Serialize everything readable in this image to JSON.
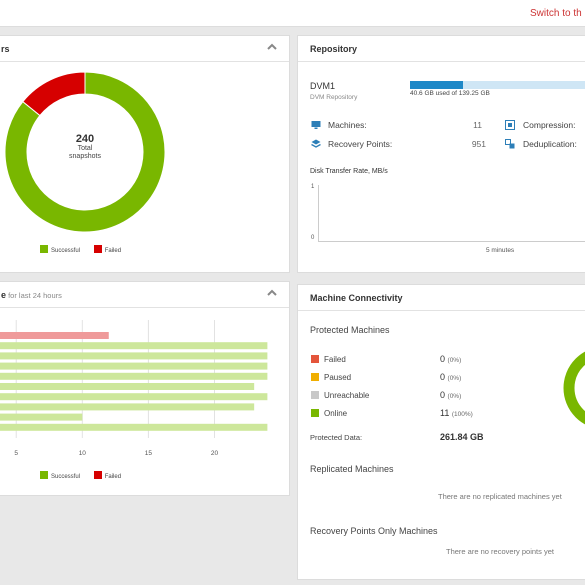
{
  "topbar": {
    "switch_link": "Switch to th"
  },
  "snapshots_panel": {
    "title": "rs",
    "total": "240",
    "total_label_1": "Total",
    "total_label_2": "snapshots",
    "successful": 206,
    "failed": 34,
    "legend_successful": "Successful",
    "legend_failed": "Failed",
    "color_successful": "#79b700",
    "color_failed": "#d60000"
  },
  "repository": {
    "title": "Repository",
    "name": "DVM1",
    "type": "DVM Repository",
    "usage_text": "40.6 GB used of 139.25 GB",
    "used_gb": 40.6,
    "total_gb": 139.25,
    "machines_label": "Machines:",
    "machines_value": "11",
    "recovery_points_label": "Recovery Points:",
    "recovery_points_value": "951",
    "compression_label": "Compression:",
    "deduplication_label": "Deduplication:",
    "transfer_title": "Disk Transfer Rate, MB/s",
    "y_top": "1",
    "y_bottom": "0",
    "x_label": "5 minutes"
  },
  "jobs_panel": {
    "title_bold": "e",
    "title_rest": " for last 24 hours",
    "legend_successful": "Successful",
    "legend_failed": "Failed",
    "color_successful": "#cde79b",
    "color_failed": "#ef9a9a"
  },
  "chart_data": {
    "type": "bar",
    "orientation": "horizontal",
    "x_ticks": [
      "5",
      "10",
      "15",
      "20"
    ],
    "xlim": [
      4,
      24.5
    ],
    "rows": [
      {
        "status": "Failed",
        "value": 12
      },
      {
        "status": "Successful",
        "value": 24
      },
      {
        "status": "Successful",
        "value": 24
      },
      {
        "status": "Successful",
        "value": 24
      },
      {
        "status": "Successful",
        "value": 24
      },
      {
        "status": "Successful",
        "value": 23
      },
      {
        "status": "Successful",
        "value": 24
      },
      {
        "status": "Successful",
        "value": 23
      },
      {
        "status": "Successful",
        "value": 10
      },
      {
        "status": "Successful",
        "value": 24
      }
    ]
  },
  "connectivity": {
    "title": "Machine Connectivity",
    "protected_heading": "Protected Machines",
    "rows": [
      {
        "label": "Failed",
        "count": "0",
        "pct": "(0%)",
        "color": "#e4553b"
      },
      {
        "label": "Paused",
        "count": "0",
        "pct": "(0%)",
        "color": "#f0ae00"
      },
      {
        "label": "Unreachable",
        "count": "0",
        "pct": "(0%)",
        "color": "#c8c8c8"
      },
      {
        "label": "Online",
        "count": "11",
        "pct": "(100%)",
        "color": "#79b700"
      }
    ],
    "protected_data_label": "Protected Data:",
    "protected_data_value": "261.84 GB",
    "replicated_heading": "Replicated Machines",
    "replicated_empty": "There are no replicated machines yet",
    "recovery_only_heading": "Recovery Points Only Machines",
    "recovery_only_empty": "There are no recovery points yet"
  }
}
